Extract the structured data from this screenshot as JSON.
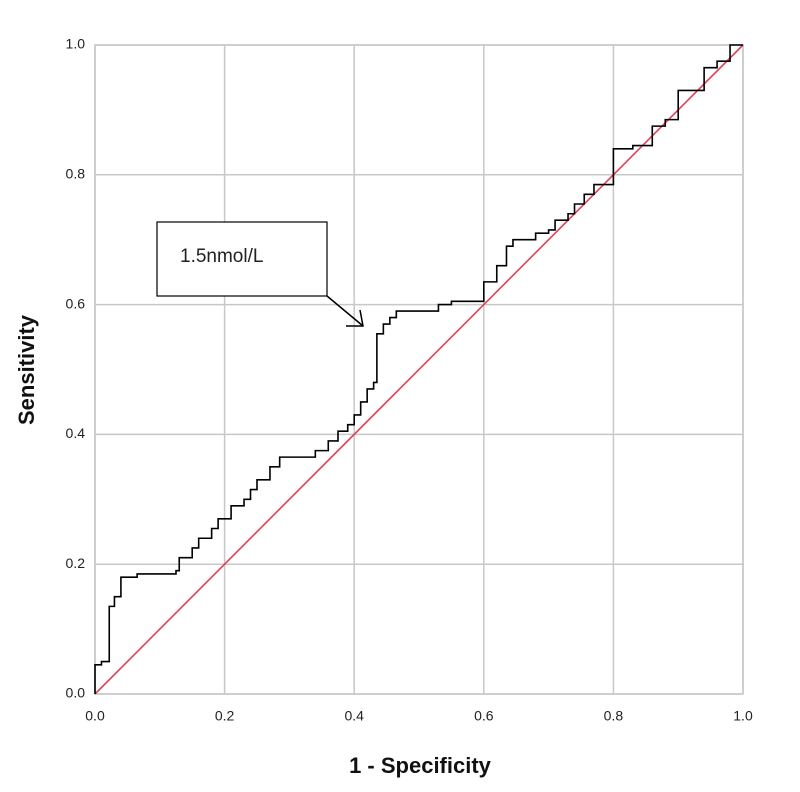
{
  "chart_data": {
    "type": "line",
    "xlabel": "1 - Specificity",
    "ylabel": "Sensitivity",
    "annotation": "1.5nmol/L",
    "xlim": [
      0,
      1
    ],
    "ylim": [
      0,
      1
    ],
    "xticks": [
      {
        "value": 0,
        "label": "0.0"
      },
      0.2,
      0.4,
      0.6,
      0.8,
      {
        "value": 1,
        "label": "1.0"
      }
    ],
    "yticks": [
      {
        "value": 0,
        "label": "0.0"
      },
      0.2,
      0.4,
      0.6,
      0.8,
      {
        "value": 1,
        "label": "1.0"
      }
    ],
    "grid": true,
    "series": [
      {
        "color": "#000000",
        "x": [
          0,
          0,
          0.01,
          0.01,
          0.022,
          0.022,
          0.03,
          0.03,
          0.04,
          0.04,
          0.065,
          0.065,
          0.125,
          0.125,
          0.13,
          0.13,
          0.15,
          0.15,
          0.16,
          0.16,
          0.18,
          0.18,
          0.19,
          0.19,
          0.21,
          0.21,
          0.23,
          0.23,
          0.24,
          0.24,
          0.25,
          0.25,
          0.27,
          0.27,
          0.285,
          0.285,
          0.34,
          0.34,
          0.36,
          0.36,
          0.375,
          0.375,
          0.39,
          0.39,
          0.4,
          0.4,
          0.41,
          0.41,
          0.42,
          0.42,
          0.43,
          0.43,
          0.435,
          0.435,
          0.445,
          0.445,
          0.455,
          0.455,
          0.465,
          0.465,
          0.53,
          0.53,
          0.55,
          0.55,
          0.6,
          0.6,
          0.62,
          0.62,
          0.635,
          0.635,
          0.645,
          0.645,
          0.68,
          0.68,
          0.7,
          0.7,
          0.71,
          0.71,
          0.73,
          0.73,
          0.74,
          0.74,
          0.755,
          0.755,
          0.77,
          0.77,
          0.8,
          0.8,
          0.83,
          0.83,
          0.86,
          0.86,
          0.88,
          0.88,
          0.9,
          0.9,
          0.94,
          0.94,
          0.96,
          0.96,
          0.98,
          0.98,
          1
        ],
        "values": [
          0,
          0.045,
          0.045,
          0.05,
          0.05,
          0.135,
          0.135,
          0.15,
          0.15,
          0.18,
          0.18,
          0.185,
          0.185,
          0.19,
          0.19,
          0.21,
          0.21,
          0.225,
          0.225,
          0.24,
          0.24,
          0.255,
          0.255,
          0.27,
          0.27,
          0.29,
          0.29,
          0.3,
          0.3,
          0.315,
          0.315,
          0.33,
          0.33,
          0.35,
          0.35,
          0.365,
          0.365,
          0.375,
          0.375,
          0.39,
          0.39,
          0.405,
          0.405,
          0.415,
          0.415,
          0.43,
          0.43,
          0.45,
          0.45,
          0.47,
          0.47,
          0.48,
          0.48,
          0.555,
          0.555,
          0.57,
          0.57,
          0.58,
          0.58,
          0.59,
          0.59,
          0.6,
          0.6,
          0.605,
          0.605,
          0.635,
          0.635,
          0.66,
          0.66,
          0.69,
          0.69,
          0.7,
          0.7,
          0.71,
          0.71,
          0.715,
          0.715,
          0.73,
          0.73,
          0.74,
          0.74,
          0.755,
          0.755,
          0.77,
          0.77,
          0.785,
          0.785,
          0.84,
          0.84,
          0.845,
          0.845,
          0.875,
          0.875,
          0.885,
          0.885,
          0.93,
          0.93,
          0.965,
          0.965,
          0.975,
          0.975,
          1,
          1
        ]
      },
      {
        "color": "#e0405a",
        "x": [
          0,
          1
        ],
        "values": [
          0,
          1
        ]
      }
    ]
  }
}
